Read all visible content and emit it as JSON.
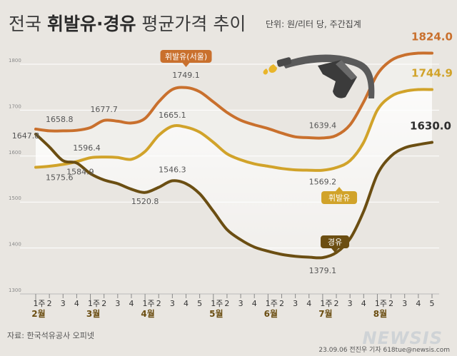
{
  "header": {
    "title_prefix": "전국 ",
    "title_bold": "휘발유·경유",
    "title_suffix": " 평균가격 추이",
    "unit_note": "단위: 원/리터 당, 주간집계"
  },
  "footer": {
    "source": "자료: 한국석유공사 오피넷",
    "credit": "23.09.06 전진우 기자 618tue@newsis.com",
    "logo": "NEWSIS"
  },
  "colors": {
    "background": "#e9e6e1",
    "seoul_gasoline": "#c9702d",
    "gasoline": "#d1a32a",
    "diesel": "#6b4e12",
    "band": "#f6f3ef",
    "label_text": "#555555"
  },
  "icon": "fuel-nozzle-icon",
  "chart_data": {
    "type": "line",
    "ylim": [
      1300,
      1850
    ],
    "yticks": [
      1300,
      1400,
      1500,
      1600,
      1700,
      1800
    ],
    "x": [
      "1주",
      "2",
      "3",
      "4",
      "1주",
      "2",
      "3",
      "4",
      "1주",
      "2",
      "3",
      "4",
      "5",
      "1주",
      "2",
      "3",
      "4",
      "1주",
      "2",
      "3",
      "4",
      "1주",
      "2",
      "3",
      "4",
      "1주",
      "2",
      "3",
      "4",
      "5"
    ],
    "month_labels": [
      {
        "index": 0,
        "label": "2월"
      },
      {
        "index": 4,
        "label": "3월"
      },
      {
        "index": 8,
        "label": "4월"
      },
      {
        "index": 13,
        "label": "5월"
      },
      {
        "index": 17,
        "label": "6월"
      },
      {
        "index": 21,
        "label": "7월"
      },
      {
        "index": 25,
        "label": "8월"
      }
    ],
    "series": [
      {
        "name": "휘발유(서울)",
        "color_key": "seoul_gasoline",
        "values": [
          1658.8,
          1655,
          1655,
          1656,
          1662,
          1677.7,
          1676,
          1672,
          1682,
          1718,
          1745,
          1749.1,
          1740,
          1718,
          1695,
          1678,
          1668,
          1660,
          1650,
          1642,
          1640,
          1639.4,
          1645,
          1668,
          1718,
          1778,
          1808,
          1820,
          1824.0,
          1824.0
        ]
      },
      {
        "name": "휘발유",
        "color_key": "gasoline",
        "values": [
          1575.6,
          1578,
          1582,
          1588,
          1596.4,
          1598,
          1597,
          1593,
          1610,
          1645,
          1665.1,
          1663,
          1652,
          1630,
          1605,
          1592,
          1583,
          1578,
          1573,
          1570,
          1569.2,
          1569.2,
          1575,
          1590,
          1630,
          1700,
          1730,
          1741,
          1744.9,
          1744.9
        ]
      },
      {
        "name": "경유",
        "color_key": "diesel",
        "values": [
          1647.8,
          1620,
          1590,
          1584.9,
          1562,
          1548,
          1540,
          1528,
          1520.8,
          1532,
          1546.3,
          1540,
          1518,
          1480,
          1440,
          1418,
          1402,
          1393,
          1386,
          1382,
          1380,
          1379.1,
          1390,
          1420,
          1480,
          1560,
          1600,
          1618,
          1625,
          1630.0
        ]
      }
    ],
    "annotations": [
      {
        "series": 0,
        "index": 0,
        "text": "1658.8"
      },
      {
        "series": 0,
        "index": 5,
        "text": "1677.7"
      },
      {
        "series": 0,
        "index": 11,
        "text": "1749.1"
      },
      {
        "series": 0,
        "index": 21,
        "text": "1639.4"
      },
      {
        "series": 0,
        "index": 29,
        "text": "1824.0"
      },
      {
        "series": 1,
        "index": 0,
        "text": "1575.6"
      },
      {
        "series": 1,
        "index": 4,
        "text": "1596.4"
      },
      {
        "series": 1,
        "index": 10,
        "text": "1665.1"
      },
      {
        "series": 1,
        "index": 21,
        "text": "1569.2"
      },
      {
        "series": 1,
        "index": 29,
        "text": "1744.9"
      },
      {
        "series": 2,
        "index": 0,
        "text": "1647.8"
      },
      {
        "series": 2,
        "index": 3,
        "text": "1584.9"
      },
      {
        "series": 2,
        "index": 8,
        "text": "1520.8"
      },
      {
        "series": 2,
        "index": 10,
        "text": "1546.3"
      },
      {
        "series": 2,
        "index": 21,
        "text": "1379.1"
      },
      {
        "series": 2,
        "index": 29,
        "text": "1630.0"
      }
    ],
    "legend_tags": [
      {
        "series": 0,
        "text": "휘발유(서울)",
        "index": 11
      },
      {
        "series": 1,
        "text": "휘발유",
        "index": 22
      },
      {
        "series": 2,
        "text": "경유",
        "index": 22
      }
    ]
  }
}
